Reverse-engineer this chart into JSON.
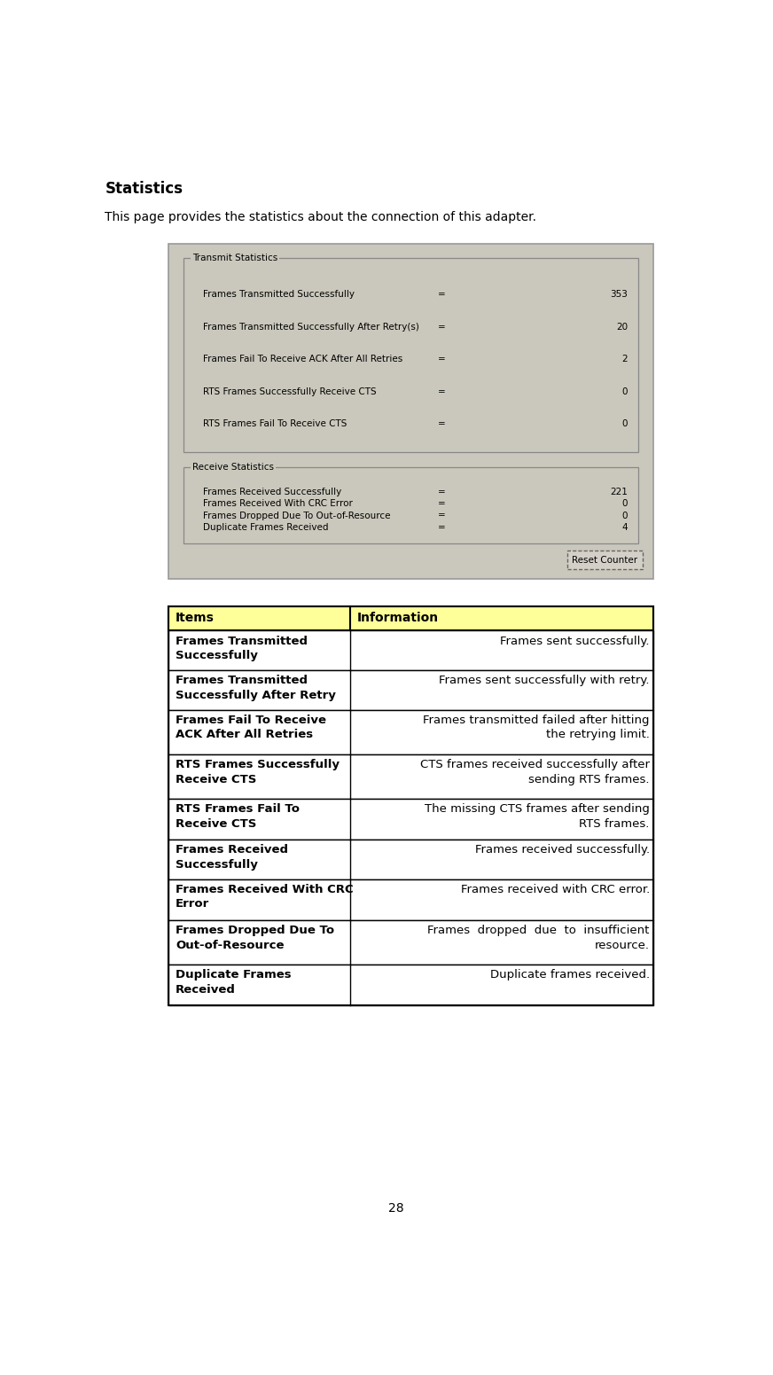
{
  "title": "Statistics",
  "subtitle": "This page provides the statistics about the connection of this adapter.",
  "page_number": "28",
  "screenshot": {
    "bg_color": "#cac8bc",
    "border_color": "#999999",
    "transmit_label": "Transmit Statistics",
    "receive_label": "Receive Statistics",
    "transmit_rows": [
      [
        "Frames Transmitted Successfully",
        "=",
        "353"
      ],
      [
        "Frames Transmitted Successfully After Retry(s)",
        "=",
        "20"
      ],
      [
        "Frames Fail To Receive ACK After All Retries",
        "=",
        "2"
      ],
      [
        "RTS Frames Successfully Receive CTS",
        "=",
        "0"
      ],
      [
        "RTS Frames Fail To Receive CTS",
        "=",
        "0"
      ]
    ],
    "receive_rows": [
      [
        "Frames Received Successfully",
        "=",
        "221"
      ],
      [
        "Frames Received With CRC Error",
        "=",
        "0"
      ],
      [
        "Frames Dropped Due To Out-of-Resource",
        "=",
        "0"
      ],
      [
        "Duplicate Frames Received",
        "=",
        "4"
      ]
    ],
    "button_text": "Reset Counter"
  },
  "table": {
    "header_bg": "#ffff99",
    "header_color": "#000000",
    "border_color": "#000000",
    "col1_header": "Items",
    "col2_header": "Information",
    "rows": [
      {
        "item": "Frames Transmitted\nSuccessfully",
        "info": "Frames sent successfully."
      },
      {
        "item": "Frames Transmitted\nSuccessfully After Retry",
        "info": "Frames sent successfully with retry."
      },
      {
        "item": "Frames Fail To Receive\nACK After All Retries",
        "info": "Frames transmitted failed after hitting\nthe retrying limit."
      },
      {
        "item": "RTS Frames Successfully\nReceive CTS",
        "info": "CTS frames received successfully after\nsending RTS frames."
      },
      {
        "item": "RTS Frames Fail To\nReceive CTS",
        "info": "The missing CTS frames after sending\nRTS frames."
      },
      {
        "item": "Frames Received\nSuccessfully",
        "info": "Frames received successfully."
      },
      {
        "item": "Frames Received With CRC\nError",
        "info": "Frames received with CRC error."
      },
      {
        "item": "Frames Dropped Due To\nOut-of-Resource",
        "info": "Frames  dropped  due  to  insufficient\nresource."
      },
      {
        "item": "Duplicate Frames\nReceived",
        "info": "Duplicate frames received."
      }
    ]
  },
  "fig_width": 8.72,
  "fig_height": 15.51,
  "dpi": 100
}
